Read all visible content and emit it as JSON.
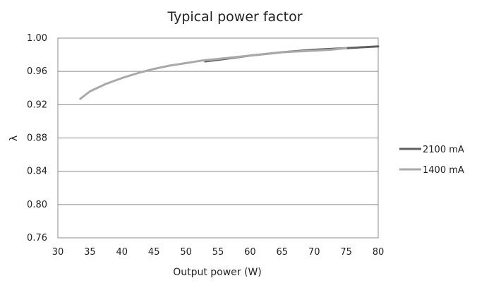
{
  "chart_data": {
    "type": "line",
    "title": "Typical power factor",
    "xlabel": "Output power (W)",
    "ylabel": "λ",
    "xlim": [
      30,
      80
    ],
    "ylim": [
      0.76,
      1.0
    ],
    "x_ticks": [
      "30",
      "35",
      "40",
      "45",
      "50",
      "55",
      "60",
      "65",
      "70",
      "75",
      "80"
    ],
    "y_ticks": [
      "1.00",
      "0.96",
      "0.92",
      "0.88",
      "0.84",
      "0.80",
      "0.76"
    ],
    "grid": true,
    "legend_position": "right",
    "series": [
      {
        "name": "2100 mA",
        "color": "#5f5f5f",
        "x": [
          53,
          55,
          60,
          65,
          70,
          75,
          80
        ],
        "y": [
          0.972,
          0.974,
          0.979,
          0.983,
          0.986,
          0.988,
          0.99
        ]
      },
      {
        "name": "1400 mA",
        "color": "#a9a9a9",
        "x": [
          33.5,
          35,
          37.5,
          40,
          42.5,
          45,
          47.5,
          50,
          52.5,
          55,
          57.5,
          60,
          62.5,
          65,
          67.5,
          70,
          72.5,
          75
        ],
        "y": [
          0.927,
          0.936,
          0.945,
          0.952,
          0.958,
          0.963,
          0.967,
          0.97,
          0.973,
          0.975,
          0.977,
          0.979,
          0.981,
          0.983,
          0.984,
          0.985,
          0.986,
          0.988
        ]
      }
    ]
  }
}
